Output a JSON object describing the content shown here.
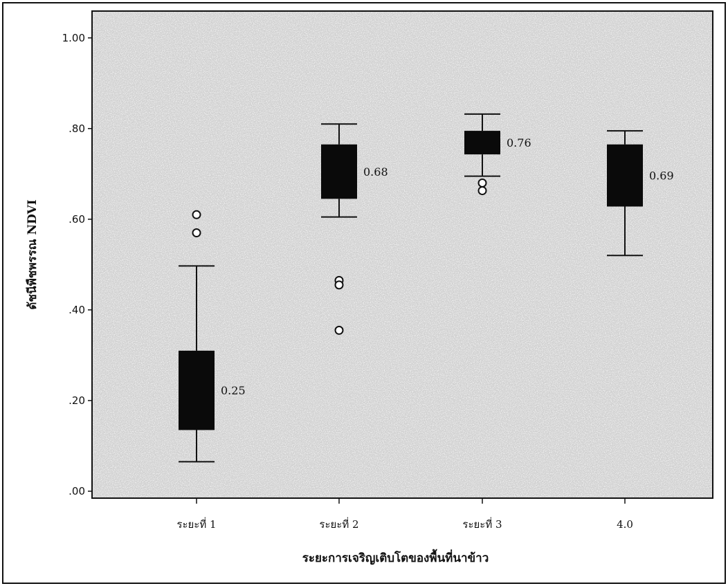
{
  "chart_data": {
    "type": "boxplot",
    "title": "",
    "xlabel": "ระยะการเจริญเติบโตของพื้นที่นาข้าว",
    "ylabel": "ดัชนีพืชพรรณ NDVI",
    "ylim": [
      0,
      1.05
    ],
    "y_ticks": [
      {
        "value": 0.0,
        "label": ".00"
      },
      {
        "value": 0.2,
        "label": ".20"
      },
      {
        "value": 0.4,
        "label": ".40"
      },
      {
        "value": 0.6,
        "label": ".60"
      },
      {
        "value": 0.8,
        "label": ".80"
      },
      {
        "value": 1.0,
        "label": "1.00"
      }
    ],
    "grid": false,
    "categories": [
      "ระยะที่ 1",
      "ระยะที่ 2",
      "ระยะที่ 3",
      "4.0"
    ],
    "boxes": [
      {
        "min": 0.065,
        "q1": 0.135,
        "q3": 0.31,
        "max": 0.497,
        "outliers": [
          0.61,
          0.57
        ],
        "label": "0.25"
      },
      {
        "min": 0.605,
        "q1": 0.645,
        "q3": 0.765,
        "max": 0.81,
        "outliers": [
          0.465,
          0.455,
          0.355
        ],
        "label": "0.68"
      },
      {
        "min": 0.695,
        "q1": 0.743,
        "q3": 0.795,
        "max": 0.832,
        "outliers": [
          0.68,
          0.663
        ],
        "label": "0.76"
      },
      {
        "min": 0.52,
        "q1": 0.628,
        "q3": 0.765,
        "max": 0.795,
        "outliers": [],
        "label": "0.69"
      }
    ],
    "colors": {
      "box": "#0a0a0a",
      "background": "#f4f4f4",
      "whisker": "#111111"
    }
  }
}
